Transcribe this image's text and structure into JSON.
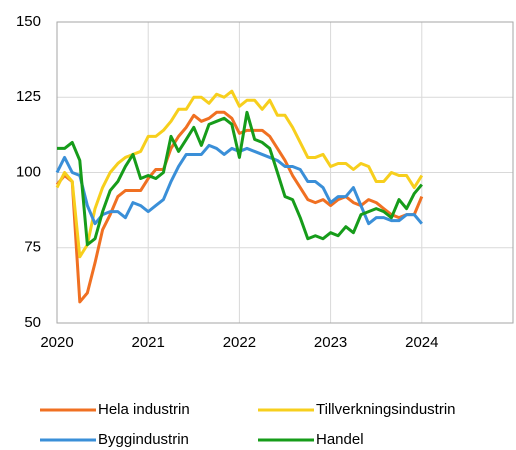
{
  "chart_data": {
    "type": "line",
    "x": [
      2020,
      2020.083,
      2020.167,
      2020.25,
      2020.333,
      2020.417,
      2020.5,
      2020.583,
      2020.667,
      2020.75,
      2020.833,
      2020.917,
      2021,
      2021.083,
      2021.167,
      2021.25,
      2021.333,
      2021.417,
      2021.5,
      2021.583,
      2021.667,
      2021.75,
      2021.833,
      2021.917,
      2022,
      2022.083,
      2022.167,
      2022.25,
      2022.333,
      2022.417,
      2022.5,
      2022.583,
      2022.667,
      2022.75,
      2022.833,
      2022.917,
      2023,
      2023.083,
      2023.167,
      2023.25,
      2023.333,
      2023.417,
      2023.5,
      2023.583,
      2023.667,
      2023.75,
      2023.833,
      2023.917,
      2024
    ],
    "series": [
      {
        "name": "Hela industrin",
        "color": "#f07022",
        "values": [
          96,
          99,
          97,
          57,
          60,
          70,
          81,
          86,
          92,
          94,
          94,
          94,
          98,
          101,
          101,
          108,
          112,
          115,
          119,
          117,
          118,
          120,
          120,
          118,
          113,
          114,
          114,
          114,
          112,
          108,
          104,
          99,
          95,
          91,
          90,
          91,
          89,
          91,
          92,
          90,
          89,
          91,
          90,
          88,
          86,
          85,
          86,
          86,
          92
        ]
      },
      {
        "name": "Tillverkningsindustrin",
        "color": "#f7cf1d",
        "values": [
          95,
          100,
          97,
          72,
          76,
          88,
          95,
          100,
          103,
          105,
          106,
          107,
          112,
          112,
          114,
          117,
          121,
          121,
          125,
          125,
          123,
          126,
          125,
          127,
          122,
          124,
          124,
          121,
          124,
          119,
          119,
          115,
          110,
          105,
          105,
          106,
          102,
          103,
          103,
          101,
          103,
          102,
          97,
          97,
          100,
          99,
          99,
          95,
          99
        ]
      },
      {
        "name": "Byggindustrin",
        "color": "#3a8fd8",
        "values": [
          100,
          105,
          100,
          99,
          89,
          83,
          86,
          87,
          87,
          85,
          90,
          89,
          87,
          89,
          91,
          97,
          102,
          106,
          106,
          106,
          109,
          108,
          106,
          108,
          107,
          108,
          107,
          106,
          105,
          104,
          102,
          102,
          101,
          97,
          97,
          95,
          90,
          92,
          92,
          95,
          89,
          83,
          85,
          85,
          84,
          84,
          86,
          86,
          83
        ]
      },
      {
        "name": "Handel",
        "color": "#169c1a",
        "values": [
          108,
          108,
          110,
          104,
          76,
          78,
          87,
          94,
          97,
          102,
          106,
          98,
          99,
          98,
          100,
          112,
          107,
          111,
          115,
          109,
          116,
          117,
          118,
          116,
          105,
          120,
          111,
          110,
          108,
          100,
          92,
          91,
          85,
          78,
          79,
          78,
          80,
          79,
          82,
          80,
          86,
          87,
          88,
          87,
          85,
          91,
          88,
          93,
          96
        ]
      }
    ],
    "xlim": [
      2020,
      2025
    ],
    "xticks": [
      2020,
      2021,
      2022,
      2023,
      2024
    ],
    "ylim": [
      50,
      150
    ],
    "yticks": [
      50,
      75,
      100,
      125,
      150
    ],
    "grid": true
  }
}
